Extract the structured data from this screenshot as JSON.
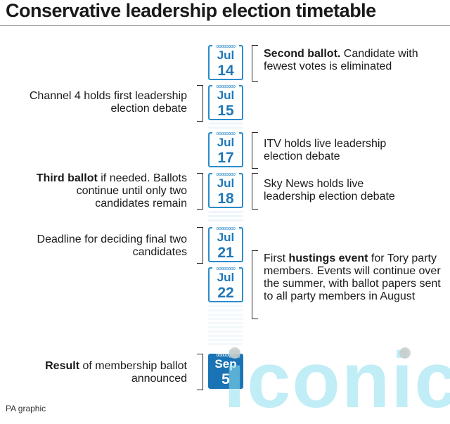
{
  "title": "Conservative leadership election timetable",
  "footer": "PA graphic",
  "watermark": "iconic",
  "calendars": [
    {
      "month": "Jul",
      "day": "14"
    },
    {
      "month": "Jul",
      "day": "15"
    },
    {
      "month": "Jul",
      "day": "17"
    },
    {
      "month": "Jul",
      "day": "18"
    },
    {
      "month": "Jul",
      "day": "21"
    },
    {
      "month": "Jul",
      "day": "22"
    },
    {
      "month": "Sep",
      "day": "5"
    }
  ],
  "rings": "oooooooo",
  "events": {
    "jul14": {
      "bold": "Second ballot.",
      "rest": " Candidate with fewest votes is eliminated"
    },
    "jul15": {
      "text": "Channel 4 holds first leadership election debate"
    },
    "jul17": {
      "text": "ITV holds live leadership election debate"
    },
    "jul18_left": {
      "bold": "Third ballot",
      "rest": " if needed. Ballots continue until only two candidates remain"
    },
    "jul18_right": {
      "text": "Sky News holds live leadership election debate"
    },
    "jul21": {
      "text": "Deadline for deciding final two candidates"
    },
    "jul22": {
      "pre": "First ",
      "bold": "hustings event",
      "rest": " for Tory party members. Events will continue over the summer, with ballot papers sent to all party members in August"
    },
    "sep5": {
      "bold": "Result",
      "rest": " of membership ballot announced"
    }
  }
}
